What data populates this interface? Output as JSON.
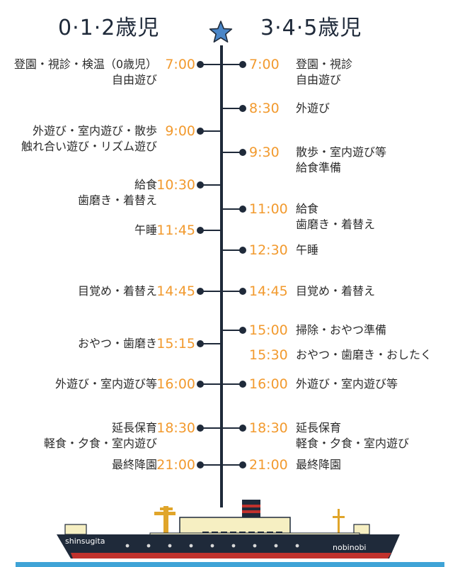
{
  "header": {
    "left_title": "0·1·2歳児",
    "right_title": "3·4·5歳児",
    "star_icon": "star-icon"
  },
  "left_schedule": [
    {
      "time": "7:00",
      "lines": [
        "登園・視診・検温（0歳児）",
        "自由遊び"
      ]
    },
    {
      "time": "9:00",
      "lines": [
        "外遊び・室内遊び・散歩",
        "触れ合い遊び・リズム遊び"
      ]
    },
    {
      "time": "10:30",
      "lines": [
        "給食",
        "歯磨き・着替え"
      ]
    },
    {
      "time": "11:45",
      "lines": [
        "午睡"
      ]
    },
    {
      "time": "14:45",
      "lines": [
        "目覚め・着替え"
      ]
    },
    {
      "time": "15:15",
      "lines": [
        "おやつ・歯磨き"
      ]
    },
    {
      "time": "16:00",
      "lines": [
        "外遊び・室内遊び等"
      ]
    },
    {
      "time": "18:30",
      "lines": [
        "延長保育",
        "軽食・夕食・室内遊び"
      ]
    },
    {
      "time": "21:00",
      "lines": [
        "最終降園"
      ]
    }
  ],
  "right_schedule": [
    {
      "time": "7:00",
      "lines": [
        "登園・視診",
        "自由遊び"
      ]
    },
    {
      "time": "8:30",
      "lines": [
        "外遊び"
      ]
    },
    {
      "time": "9:30",
      "lines": [
        "散歩・室内遊び等",
        "給食準備"
      ]
    },
    {
      "time": "11:00",
      "lines": [
        "給食",
        "歯磨き・着替え"
      ]
    },
    {
      "time": "12:30",
      "lines": [
        "午睡"
      ]
    },
    {
      "time": "14:45",
      "lines": [
        "目覚め・着替え"
      ]
    },
    {
      "time": "15:00",
      "lines": [
        "掃除・おやつ準備"
      ]
    },
    {
      "time": "15:30",
      "lines": [
        "おやつ・歯磨き・おしたく"
      ]
    },
    {
      "time": "16:00",
      "lines": [
        "外遊び・室内遊び等"
      ]
    },
    {
      "time": "18:30",
      "lines": [
        "延長保育",
        "軽食・夕食・室内遊び"
      ]
    },
    {
      "time": "21:00",
      "lines": [
        "最終降園"
      ]
    }
  ],
  "ship": {
    "left_label": "shinsugita",
    "right_label": "nobinobi",
    "icon": "ship-illustration"
  },
  "colors": {
    "time_accent": "#f29a2e",
    "axis_navy": "#1f2a3a",
    "star_blue": "#4a86c8",
    "sea_blue": "#3fa3d6",
    "hull_dark": "#1f2a3a",
    "hull_red": "#c0322d",
    "cabin_cream": "#f6efc2"
  }
}
